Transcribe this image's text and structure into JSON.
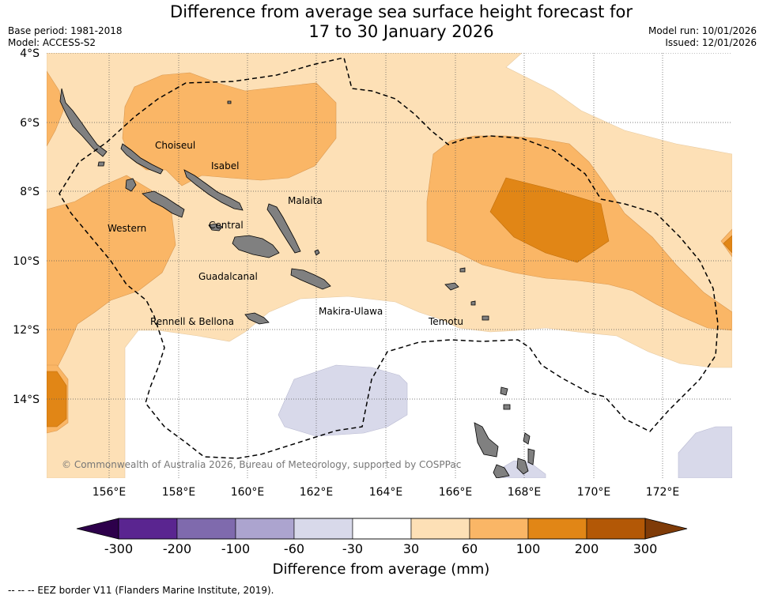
{
  "header": {
    "title_line1": "Difference from average sea surface height forecast for",
    "title_line2": "17 to 30 January 2026",
    "base_period": "Base period: 1981-2018",
    "model": "Model: ACCESS-S2",
    "model_run": "Model run: 10/01/2026",
    "issued": "Issued: 12/01/2026"
  },
  "map": {
    "lat_ticks": [
      "4°S",
      "6°S",
      "8°S",
      "10°S",
      "12°S",
      "14°S"
    ],
    "lon_ticks": [
      "156°E",
      "158°E",
      "160°E",
      "162°E",
      "164°E",
      "166°E",
      "168°E",
      "170°E",
      "172°E"
    ],
    "province_labels": [
      "Choiseul",
      "Isabel",
      "Malaita",
      "Western",
      "Central",
      "Guadalcanal",
      "Rennell & Bellona",
      "Makira-Ulawa",
      "Temotu"
    ],
    "copyright": "© Commonwealth of Australia 2026, Bureau of Meteorology, supported by COSPPac",
    "colors": {
      "land": "#808080",
      "band_30_60": "#fde0b6",
      "band_60_100": "#fab666",
      "band_100_200": "#e18616",
      "band_m60_m30": "#d8d9ea"
    }
  },
  "colorbar": {
    "tick_labels": [
      "-300",
      "-200",
      "-100",
      "-60",
      "-30",
      "30",
      "60",
      "100",
      "200",
      "300"
    ],
    "segment_colors": [
      "#5a2590",
      "#7f6aad",
      "#aca4cf",
      "#d8d9ea",
      "#ffffff",
      "#fde0b6",
      "#fab666",
      "#e18616",
      "#b35806"
    ],
    "extend_low_color": "#2d004b",
    "extend_high_color": "#7f3b08",
    "title": "Difference from average (mm)"
  },
  "legend": {
    "eez": "--  --  -- EEZ border V11 (Flanders Marine Institute, 2019)."
  }
}
